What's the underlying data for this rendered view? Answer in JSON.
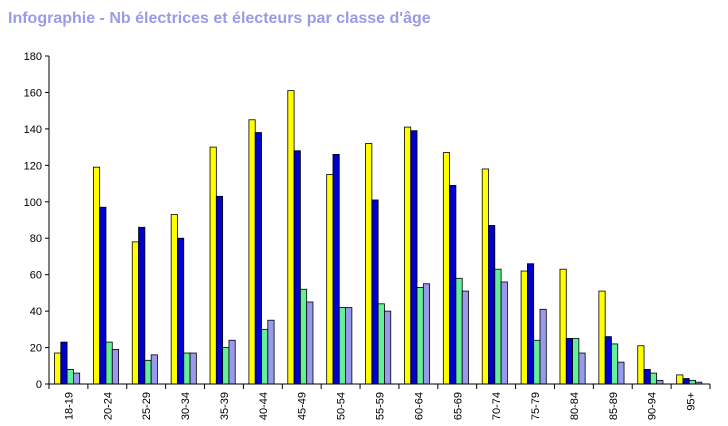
{
  "title": "Infographie - Nb électrices et électeurs par classe d'âge",
  "chart_data": {
    "type": "bar",
    "title": "Infographie - Nb électrices et électeurs par classe d'âge",
    "xlabel": "",
    "ylabel": "",
    "ylim": [
      0,
      180
    ],
    "yticks": [
      0,
      20,
      40,
      60,
      80,
      100,
      120,
      140,
      160,
      180
    ],
    "grid": false,
    "legend": "none",
    "categories": [
      "18-19",
      "20-24",
      "25-29",
      "30-34",
      "35-39",
      "40-44",
      "45-49",
      "50-54",
      "55-59",
      "60-64",
      "65-69",
      "70-74",
      "75-79",
      "80-84",
      "85-89",
      "90-94",
      "95+"
    ],
    "series": [
      {
        "color": "#ffff00",
        "values": [
          17,
          119,
          78,
          93,
          130,
          145,
          161,
          115,
          132,
          141,
          127,
          118,
          62,
          63,
          51,
          21,
          5
        ]
      },
      {
        "color": "#0000cc",
        "values": [
          23,
          97,
          86,
          80,
          103,
          138,
          128,
          126,
          101,
          139,
          109,
          87,
          66,
          25,
          26,
          8,
          3
        ]
      },
      {
        "color": "#66ee99",
        "values": [
          8,
          23,
          13,
          17,
          20,
          30,
          52,
          42,
          44,
          53,
          58,
          63,
          24,
          25,
          22,
          6,
          2
        ]
      },
      {
        "color": "#9999ee",
        "values": [
          6,
          19,
          16,
          17,
          24,
          35,
          45,
          42,
          40,
          55,
          51,
          56,
          41,
          17,
          12,
          2,
          1
        ]
      }
    ]
  }
}
